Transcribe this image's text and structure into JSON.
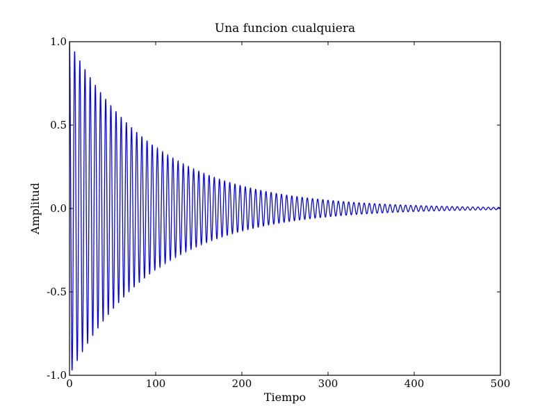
{
  "chart_data": {
    "type": "line",
    "title": "Una funcion cualquiera",
    "xlabel": "Tiempo",
    "ylabel": "Amplitud",
    "xlim": [
      0,
      500
    ],
    "ylim": [
      -1.0,
      1.0
    ],
    "x_ticks": [
      0,
      100,
      200,
      300,
      400,
      500
    ],
    "x_tick_labels": [
      "0",
      "100",
      "200",
      "300",
      "400",
      "500"
    ],
    "y_ticks": [
      1.0,
      0.5,
      0.0,
      -0.5,
      -1.0
    ],
    "y_tick_labels": [
      "1.0",
      "0.5",
      "0.0",
      "-0.5",
      "-1.0"
    ],
    "grid": false,
    "series": [
      {
        "color": "#0000ff",
        "function": "exp(-t/100)*cos(2*pi*t/6)",
        "x_range": [
          0,
          500
        ],
        "samples": 5001
      }
    ]
  }
}
